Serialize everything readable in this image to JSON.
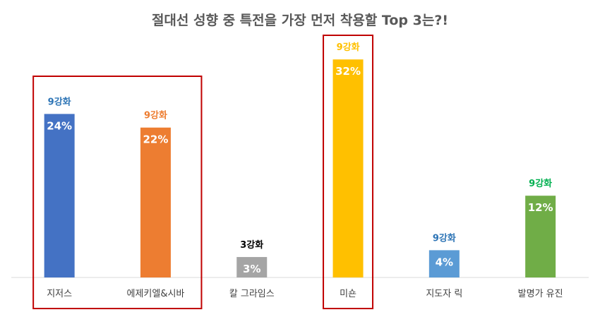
{
  "chart_data": {
    "type": "bar",
    "title": "절대선 성향 중 특전을 가장 먼저 착용할 Top 3는?!",
    "xlabel": "",
    "ylabel": "",
    "ylim": [
      0,
      35
    ],
    "grid": false,
    "legend": "none",
    "categories": [
      "지저스",
      "에제키엘&시바",
      "칼 그라임스",
      "미숀",
      "지도자 릭",
      "발명가 유진"
    ],
    "values": [
      24,
      22,
      3,
      32,
      4,
      12
    ],
    "value_labels": [
      "24%",
      "22%",
      "3%",
      "32%",
      "4%",
      "12%"
    ],
    "tier_labels": [
      "9강화",
      "9강화",
      "3강화",
      "9강화",
      "9강화",
      "9강화"
    ],
    "bar_colors": [
      "#4472C4",
      "#ED7D31",
      "#A5A5A5",
      "#FFC000",
      "#5B9BD5",
      "#70AD47"
    ],
    "tier_label_colors": [
      "#2E75B6",
      "#ED7D31",
      "#000000",
      "#FFC000",
      "#2E75B6",
      "#00B050"
    ],
    "highlight_boxes": [
      {
        "from": 0,
        "to": 1,
        "color": "#C00000"
      },
      {
        "from": 3,
        "to": 3,
        "color": "#C00000"
      }
    ]
  }
}
